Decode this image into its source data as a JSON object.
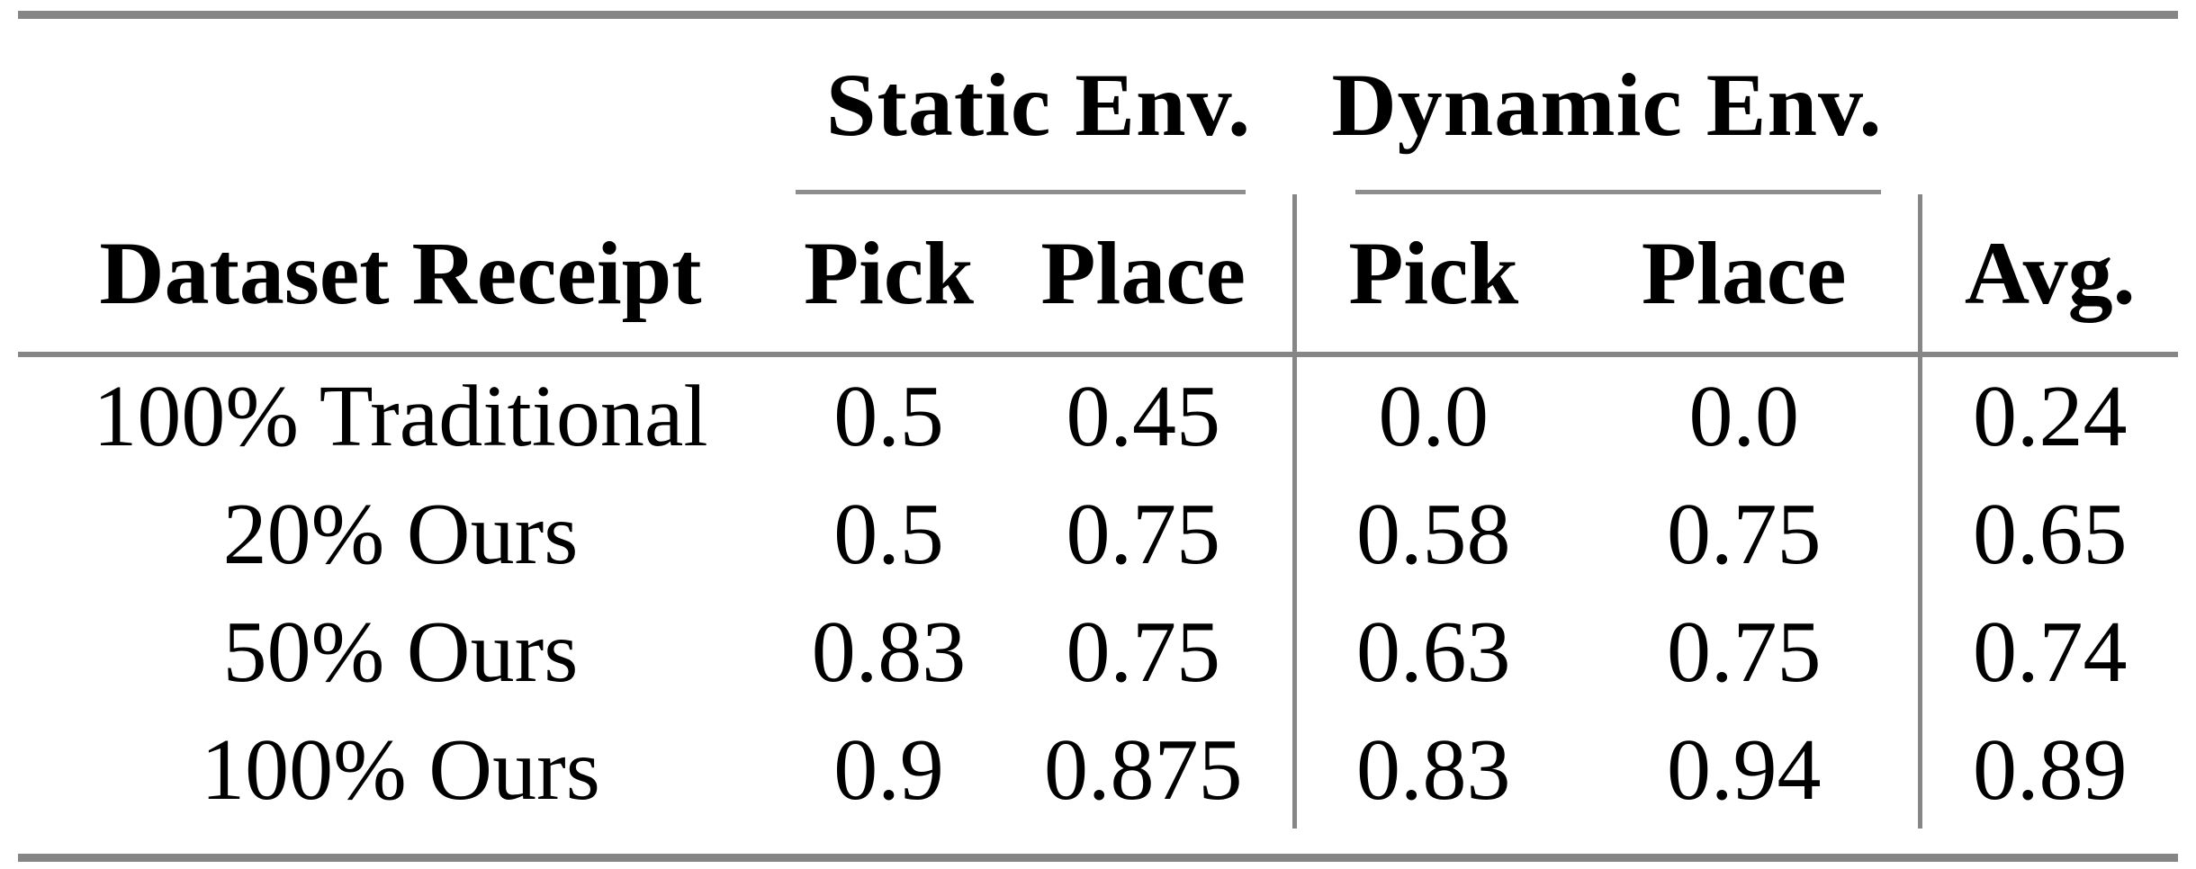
{
  "table": {
    "groups": [
      {
        "label": "Static Env.",
        "columns": [
          "Pick",
          "Place"
        ]
      },
      {
        "label": "Dynamic Env.",
        "columns": [
          "Pick",
          "Place"
        ]
      }
    ],
    "headers": {
      "row_label": "Dataset Receipt",
      "static_pick": "Pick",
      "static_place": "Place",
      "dynamic_pick": "Pick",
      "dynamic_place": "Place",
      "avg": "Avg."
    },
    "rows": [
      {
        "label": "100% Traditional",
        "values": [
          "0.5",
          "0.45",
          "0.0",
          "0.0",
          "0.24"
        ]
      },
      {
        "label": "20% Ours",
        "values": [
          "0.5",
          "0.75",
          "0.58",
          "0.75",
          "0.65"
        ]
      },
      {
        "label": "50% Ours",
        "values": [
          "0.83",
          "0.75",
          "0.63",
          "0.75",
          "0.74"
        ]
      },
      {
        "label": "100% Ours",
        "values": [
          "0.9",
          "0.875",
          "0.83",
          "0.94",
          "0.89"
        ]
      }
    ]
  },
  "colors": {
    "rule_gray": "#868686",
    "text": "#000000",
    "background": "#ffffff"
  }
}
